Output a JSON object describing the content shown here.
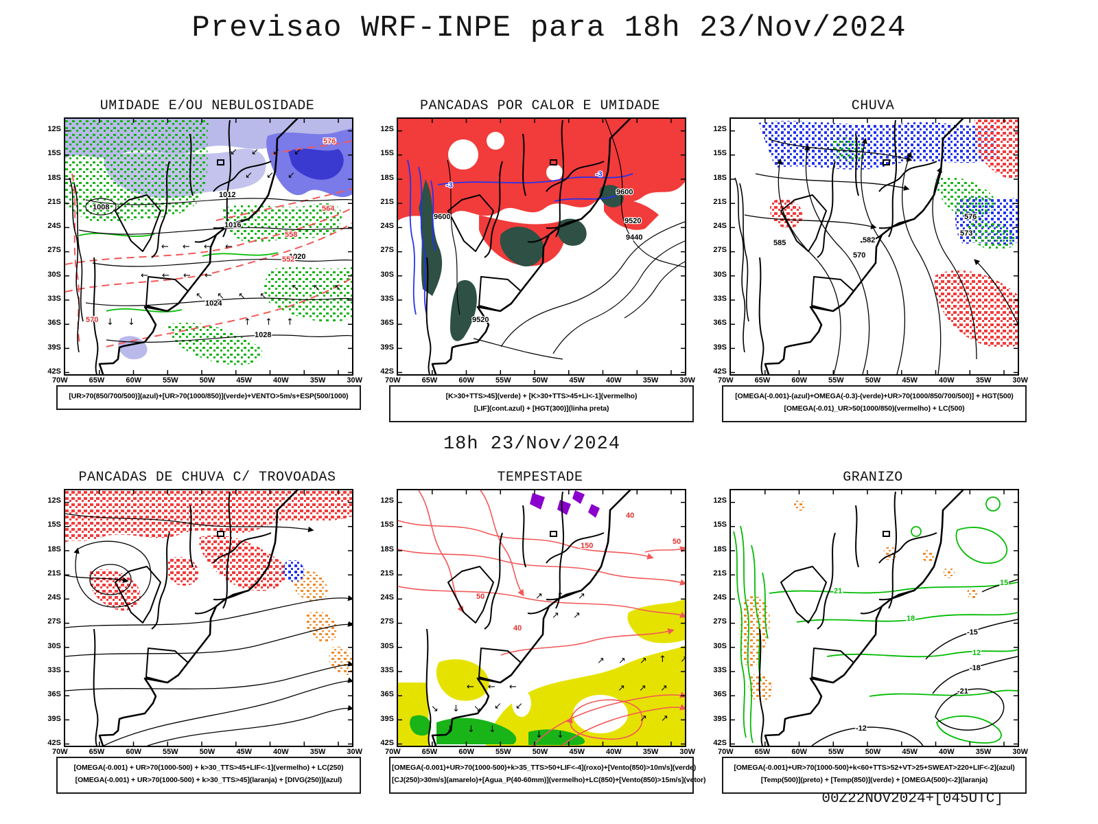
{
  "page": {
    "title": "Previsao WRF-INPE  para 18h 23/Nov/2024",
    "run_label": "18h 23/Nov/2024",
    "footer": "00Z22NOV2024+[045UTC]"
  },
  "axes": {
    "lat_ticks": [
      "12S",
      "15S",
      "18S",
      "21S",
      "24S",
      "27S",
      "30S",
      "33S",
      "36S",
      "39S",
      "42S"
    ],
    "lon_ticks": [
      "70W",
      "65W",
      "60W",
      "55W",
      "50W",
      "45W",
      "40W",
      "35W",
      "30W"
    ]
  },
  "colors": {
    "red": "#f23b3b",
    "redline": "#f25858",
    "green": "#18b418",
    "green2": "#00bb00",
    "teal": "#2e5045",
    "blue": "#2233ee",
    "lav": "#b9b9ea",
    "midblue": "#7a7ae8",
    "deepblue": "#3a3ad0",
    "orange": "#f08a28",
    "yellow": "#e6e200",
    "purple": "#8a00cc",
    "ink": "#000000"
  },
  "panels": [
    {
      "title": "UMIDADE E/OU NEBULOSIDADE",
      "caption_lines": [
        "[UR>70(850/700/500)](azul)+[UR>70(1000/850)](verde)+VENTO>5m/s+ESP(500/1000)"
      ],
      "map_labels": [
        "1008",
        "1012",
        "1016",
        "1020",
        "1024",
        "1028",
        "552",
        "558",
        "564",
        "570",
        "576"
      ]
    },
    {
      "title": "PANCADAS POR CALOR E UMIDADE",
      "caption_lines": [
        "[K>30+TTS>45](verde) + [K>30+TTS>45+LI<-1](vermelho)",
        "[LIF](cont.azul) + [HGT(300)](linha preta)"
      ],
      "map_labels": [
        "9600",
        "9520",
        "9440",
        "-3",
        "9600",
        "9520",
        "-3"
      ]
    },
    {
      "title": "CHUVA",
      "caption_lines": [
        "[OMEGA(-0.001)-(azul)+OMEGA(-0.3)-(verde)+UR>70(1000/850/700/500)] + HGT(500)",
        "[OMEGA(-0.01)_UR>50(1000/850)(vermelho) + LC(500)"
      ],
      "map_labels": [
        "582",
        "576",
        "573",
        "570",
        "585"
      ]
    },
    {
      "title": "PANCADAS DE CHUVA C/ TROVOADAS",
      "caption_lines": [
        "[OMEGA(-0.001) + UR>70(1000-500) + k>30_TTS>45+LIF<-1](vermelho) + LC(250)",
        "[OMEGA(-0.001) + UR>70(1000-500) + k>30_TTS>45](laranja) + [DIVG(250)](azul)"
      ],
      "map_labels": []
    },
    {
      "title": "TEMPESTADE",
      "caption_lines": [
        "[OMEGA(-0.001)+UR>70(1000-500)+k>35_TTS>50+LIF<-4](roxo)+[Vento(850)>10m/s](verde)",
        "[CJ(250)>30m/s](amarelo)+[Agua_P(40-60mm)](vermelho)+LC(850)+[Vento(850)>15m/s](vetor)"
      ],
      "map_labels": [
        "40",
        "50",
        "150",
        "50",
        "40"
      ]
    },
    {
      "title": "GRANIZO",
      "caption_lines": [
        "[OMEGA(-0.001)+UR>70(1000-500)+k<60+TTS>52+VT>25+SWEAT>220+LIF<-2](azul)",
        "[Temp(500)](preto) + [Temp(850)](verde) + [OMEGA(500)<-2](laranja)"
      ],
      "map_labels": [
        "21",
        "18",
        "15",
        "12",
        "-15",
        "-18",
        "-21",
        "-12"
      ]
    }
  ]
}
